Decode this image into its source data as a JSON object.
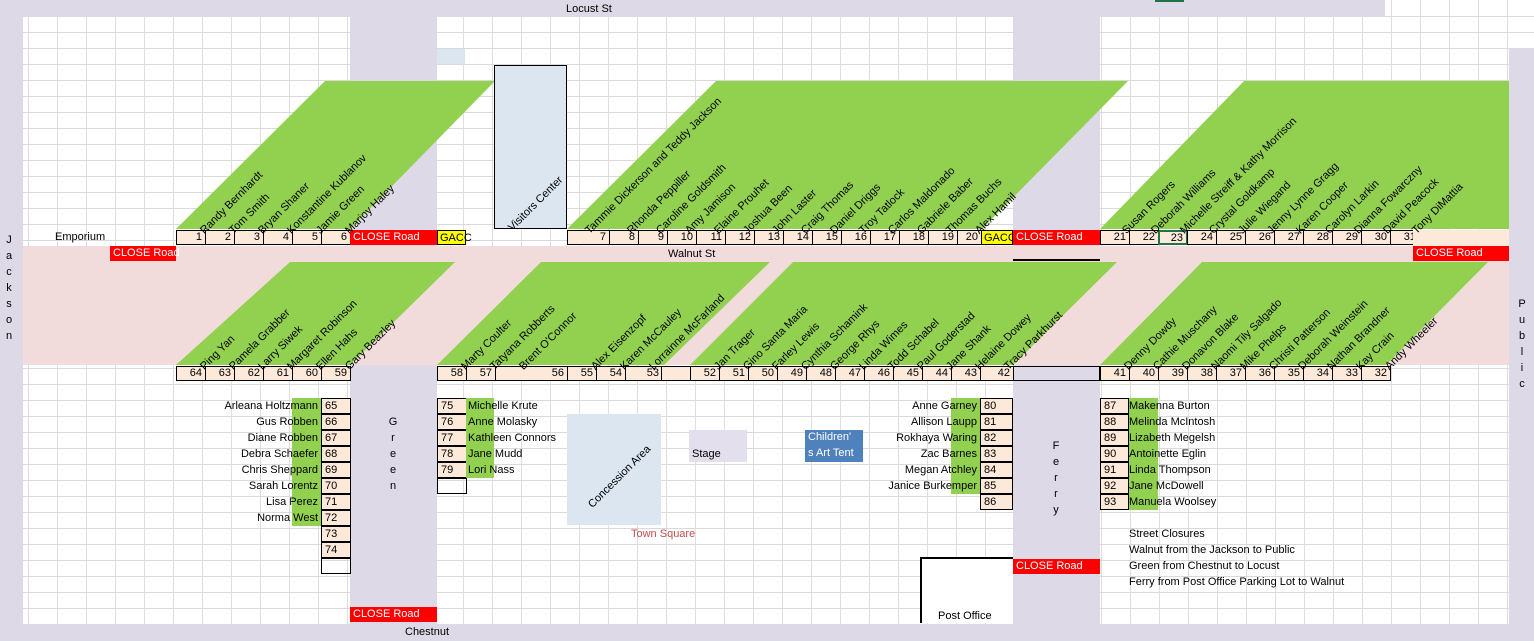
{
  "streets": {
    "top": "Locust St",
    "middle": "Walnut St",
    "bottom": "Chestnut",
    "left": "Jackson",
    "right": "Public",
    "green": "Green",
    "ferry": "Ferry"
  },
  "places": {
    "emporium": "Emporium",
    "visitors_center": "Visitors Center",
    "concession": "Concession Area",
    "stage": "Stage",
    "childrens_art_1": "Children'",
    "childrens_art_2": "s Art Tent",
    "town_square": "Town Square",
    "post_office": "Post Office"
  },
  "close_road": "CLOSE Road",
  "gacc": "GACC",
  "top_block_a": {
    "numbers": [
      "1",
      "2",
      "3",
      "4",
      "5",
      "6"
    ],
    "names": [
      "Randy Bernhardt",
      "Tom Smith",
      "Bryan Shaner",
      "Konstantine Kublanov",
      "Jamie Green",
      "Marjoy Haley"
    ]
  },
  "top_block_b": {
    "numbers": [
      "7",
      "8",
      "9",
      "10",
      "11",
      "12",
      "13",
      "14",
      "15",
      "16",
      "17",
      "18",
      "19",
      "20"
    ],
    "names": [
      "Tammie Dickerson and Teddy Jackson",
      "Rhonda Peppiller",
      "Caroline Goldsmith",
      "Amy Jamison",
      "Elaine Prouhet",
      "Joshua Been",
      "John Laster",
      "Craig Thomas",
      "Daniel Driggs",
      "Troy Tatlock",
      "Carlos Maldonado",
      "Gabriele Baber",
      "Thomas Buchs",
      "Alex Hamil"
    ]
  },
  "top_block_c": {
    "numbers": [
      "21",
      "22",
      "23",
      "24",
      "25",
      "26",
      "27",
      "28",
      "29",
      "30",
      "31"
    ],
    "names": [
      "Susan Rogers",
      "Deborah Williams",
      "Michelle Streiff & Kathy Morrison",
      "Crystal Goldkamp",
      "Julie Wiegand",
      "Jenny Lynne Gragg",
      "Karen Cooper",
      "Carolyn Larkin",
      "Dianna Fowarczny",
      "David Peacock",
      "Tony DiMattia"
    ]
  },
  "bottom_block_a": {
    "numbers": [
      "64",
      "63",
      "62",
      "61",
      "60",
      "59"
    ],
    "names": [
      "Ping Yan",
      "Pamela Grabber",
      "Larry Siwek",
      "Margaret Robinson",
      "Ellen Hahs",
      "Gary Beazley"
    ]
  },
  "bottom_block_b": {
    "numbers": [
      "58",
      "57",
      "56",
      "55",
      "54",
      "53"
    ],
    "names": [
      "Marty Coulter",
      "Tatyana Robberts",
      "Brent O'Connor",
      "Alex Eisenzopf",
      "Karen McCauley",
      "Lorrainne McFarland"
    ]
  },
  "bottom_block_c": {
    "numbers": [
      "52",
      "51",
      "50",
      "49",
      "48",
      "47",
      "46",
      "45",
      "44",
      "43",
      "42"
    ],
    "names": [
      "Jan Trager",
      "Gino Santa Maria",
      "Farley Lewis",
      "Cynthia Schamink",
      "George Rhys",
      "Linda Wimes",
      "Todd Schabel",
      "Paul Goderstad",
      "Jane Shank",
      "Helaine Dowey",
      "Tracy Parkhurst"
    ]
  },
  "bottom_block_d": {
    "numbers": [
      "41",
      "40",
      "39",
      "38",
      "37",
      "36",
      "35",
      "34",
      "33",
      "32"
    ],
    "names": [
      "Denny Dowdy",
      "Cathie Muschany",
      "Donavon Blake",
      "Naomi Tily Salgado",
      "Mike Phelps",
      "Christi Patterson",
      "Deborah Weinstein",
      "Nathan Brandner",
      "Kay Crain",
      "Andy Wheeler"
    ]
  },
  "list_65": [
    {
      "n": "65",
      "name": "Arleana Holtzmann"
    },
    {
      "n": "66",
      "name": "Gus Robben"
    },
    {
      "n": "67",
      "name": "Diane Robben"
    },
    {
      "n": "68",
      "name": "Debra Schaefer"
    },
    {
      "n": "69",
      "name": "Chris Sheppard"
    },
    {
      "n": "70",
      "name": "Sarah Lorentz"
    },
    {
      "n": "71",
      "name": "Lisa Perez"
    },
    {
      "n": "72",
      "name": "Norma West"
    },
    {
      "n": "73",
      "name": ""
    },
    {
      "n": "74",
      "name": ""
    }
  ],
  "list_75": [
    {
      "n": "75",
      "name": "Michelle Krute"
    },
    {
      "n": "76",
      "name": "Anne Molasky"
    },
    {
      "n": "77",
      "name": "Kathleen Connors"
    },
    {
      "n": "78",
      "name": "Jane Mudd"
    },
    {
      "n": "79",
      "name": "Lori Nass"
    }
  ],
  "list_80": [
    {
      "n": "80",
      "name": "Anne Garney"
    },
    {
      "n": "81",
      "name": "Allison Laupp"
    },
    {
      "n": "82",
      "name": "Rokhaya Waring"
    },
    {
      "n": "83",
      "name": "Zac Barnes"
    },
    {
      "n": "84",
      "name": "Megan Atchley"
    },
    {
      "n": "85",
      "name": "Janice Burkemper"
    },
    {
      "n": "86",
      "name": ""
    }
  ],
  "list_87": [
    {
      "n": "87",
      "name": "Makenna Burton"
    },
    {
      "n": "88",
      "name": "Melinda McIntosh"
    },
    {
      "n": "89",
      "name": "Lizabeth Megelsh"
    },
    {
      "n": "90",
      "name": "Antoinette Eglin"
    },
    {
      "n": "91",
      "name": "Linda Thompson"
    },
    {
      "n": "92",
      "name": "Jane McDowell"
    },
    {
      "n": "93",
      "name": "Manuela Woolsey"
    }
  ],
  "closures": {
    "title": "Street Closures",
    "lines": [
      "Walnut from the Jackson to Public",
      "Green from Chestnut to Locust",
      "Ferry from Post Office Parking Lot to Walnut"
    ]
  }
}
